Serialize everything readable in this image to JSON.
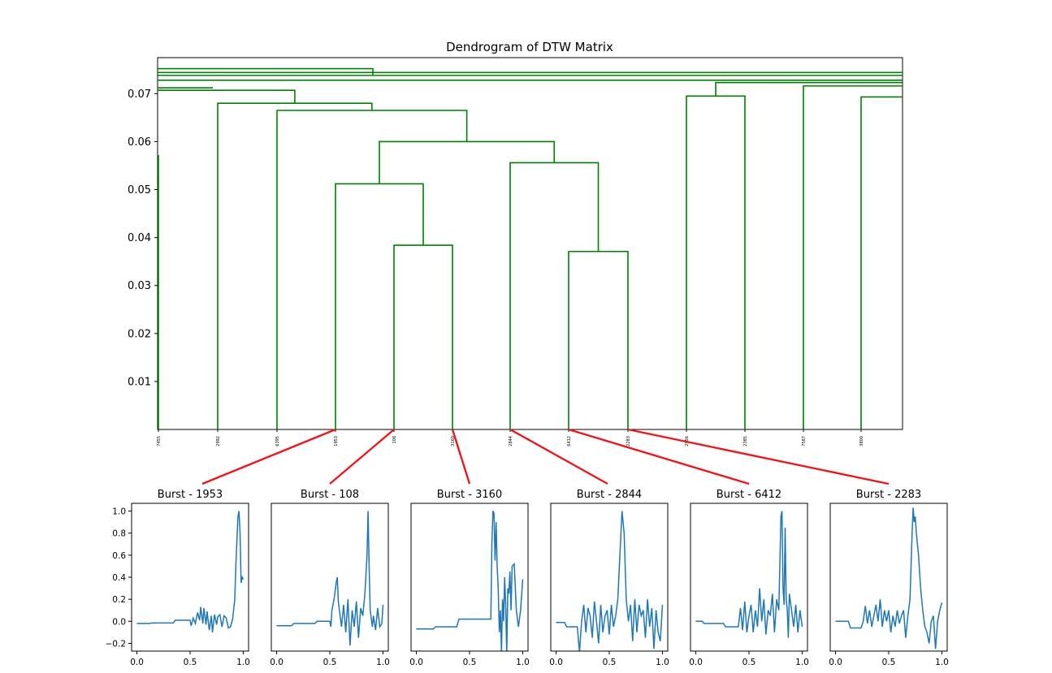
{
  "figure": {
    "colors": {
      "dendrogram": "#008000",
      "connector": "#e8181c",
      "signal": "#1f77b4",
      "axis": "#000000"
    }
  },
  "chart_data": [
    {
      "type": "dendrogram",
      "title": "Dendrogram of DTW Matrix",
      "xlabel": "",
      "ylabel": "",
      "ylim": [
        0,
        0.0775
      ],
      "yticks": [
        0.01,
        0.02,
        0.03,
        0.04,
        0.05,
        0.06,
        0.07
      ],
      "ytick_labels": [
        "0.01",
        "0.02",
        "0.03",
        "0.04",
        "0.05",
        "0.06",
        "0.07"
      ],
      "leaves": [
        "7455",
        "2992",
        "6395",
        "1953",
        "108",
        "3160",
        "2844",
        "6412",
        "2283",
        "2956",
        "2385",
        "7587",
        "3800"
      ],
      "merges": [
        {
          "left": "108",
          "right": "3160",
          "height": 0.0384
        },
        {
          "left": "1953",
          "right": "108+3160",
          "height": 0.0512
        },
        {
          "left": "6412",
          "right": "2283",
          "height": 0.0371
        },
        {
          "left": "2844",
          "right": "6412+2283",
          "height": 0.0556
        },
        {
          "left": "1953+108+3160",
          "right": "2844+6412+2283",
          "height": 0.06
        },
        {
          "left": "6395",
          "right": "1953..2283",
          "height": 0.0665
        },
        {
          "left": "2992",
          "right": "6395..2283",
          "height": 0.068
        },
        {
          "left": "2956",
          "right": "2385",
          "height": 0.0695
        },
        {
          "left": "2956+2385",
          "right": "(off-axis)",
          "height": 0.0723
        },
        {
          "left": "7587",
          "right": "(off-axis)",
          "height": 0.0716
        },
        {
          "left": "3800",
          "right": "(off-axis)",
          "height": 0.0693
        }
      ],
      "connectors": [
        {
          "leaf": "1953",
          "panel": "Burst - 1953"
        },
        {
          "leaf": "108",
          "panel": "Burst - 108"
        },
        {
          "leaf": "3160",
          "panel": "Burst - 3160"
        },
        {
          "leaf": "2844",
          "panel": "Burst - 2844"
        },
        {
          "leaf": "6412",
          "panel": "Burst - 6412"
        },
        {
          "leaf": "2283",
          "panel": "Burst - 2283"
        }
      ]
    },
    {
      "type": "line",
      "title": "Burst - 1953",
      "xlim": [
        -0.05,
        1.05
      ],
      "ylim": [
        -0.27,
        1.07
      ],
      "xticks": [
        "0.0",
        "0.5",
        "1.0"
      ],
      "yticks": [
        "−0.2",
        "0.0",
        "0.2",
        "0.4",
        "0.6",
        "0.8",
        "1.0"
      ],
      "x": [
        0.0,
        0.12,
        0.14,
        0.34,
        0.36,
        0.5,
        0.51,
        0.53,
        0.55,
        0.57,
        0.59,
        0.6,
        0.62,
        0.63,
        0.65,
        0.66,
        0.68,
        0.7,
        0.71,
        0.73,
        0.75,
        0.76,
        0.78,
        0.8,
        0.82,
        0.84,
        0.86,
        0.88,
        0.9,
        0.92,
        0.93,
        0.95,
        0.96,
        0.97,
        0.98,
        0.99,
        1.0
      ],
      "y": [
        -0.02,
        -0.02,
        -0.015,
        -0.015,
        0.01,
        0.01,
        -0.04,
        0.03,
        -0.02,
        0.08,
        0.01,
        0.13,
        -0.02,
        0.12,
        -0.03,
        0.09,
        -0.08,
        0.05,
        -0.1,
        0.06,
        -0.03,
        0.04,
        0.06,
        -0.05,
        0.05,
        0.03,
        -0.06,
        -0.05,
        0.02,
        0.2,
        0.5,
        0.95,
        1.0,
        0.8,
        0.35,
        0.4,
        0.38
      ]
    },
    {
      "type": "line",
      "title": "Burst - 108",
      "xlim": [
        -0.05,
        1.05
      ],
      "ylim": [
        -0.27,
        1.07
      ],
      "xticks": [
        "0.0",
        "0.5",
        "1.0"
      ],
      "yticks": [],
      "x": [
        0.0,
        0.14,
        0.16,
        0.36,
        0.38,
        0.5,
        0.51,
        0.52,
        0.54,
        0.56,
        0.57,
        0.58,
        0.59,
        0.61,
        0.63,
        0.65,
        0.67,
        0.69,
        0.71,
        0.73,
        0.75,
        0.77,
        0.79,
        0.81,
        0.83,
        0.85,
        0.86,
        0.87,
        0.88,
        0.9,
        0.91,
        0.93,
        0.95,
        0.97,
        0.99,
        1.0
      ],
      "y": [
        -0.04,
        -0.04,
        -0.02,
        -0.02,
        0.0,
        0.0,
        -0.05,
        0.1,
        0.2,
        0.35,
        0.4,
        0.18,
        0.1,
        -0.05,
        0.15,
        -0.1,
        0.2,
        -0.22,
        0.1,
        -0.05,
        0.18,
        -0.15,
        0.12,
        0.05,
        0.25,
        0.6,
        1.0,
        0.5,
        0.1,
        -0.05,
        0.05,
        -0.08,
        0.12,
        -0.05,
        -0.02,
        0.15
      ]
    },
    {
      "type": "line",
      "title": "Burst - 3160",
      "xlim": [
        -0.05,
        1.05
      ],
      "ylim": [
        -0.27,
        1.07
      ],
      "xticks": [
        "0.0",
        "0.5",
        "1.0"
      ],
      "yticks": [],
      "x": [
        0.0,
        0.16,
        0.18,
        0.38,
        0.4,
        0.7,
        0.71,
        0.72,
        0.73,
        0.74,
        0.75,
        0.76,
        0.77,
        0.78,
        0.79,
        0.8,
        0.81,
        0.82,
        0.83,
        0.84,
        0.85,
        0.86,
        0.87,
        0.88,
        0.89,
        0.9,
        0.92,
        0.94,
        0.96,
        0.98,
        1.0
      ],
      "y": [
        -0.07,
        -0.07,
        -0.05,
        -0.05,
        0.02,
        0.02,
        0.7,
        1.0,
        0.98,
        0.55,
        0.9,
        0.5,
        0.3,
        -0.1,
        0.1,
        -0.28,
        0.2,
        0.0,
        0.4,
        0.15,
        -0.3,
        0.3,
        0.25,
        0.45,
        0.1,
        0.5,
        0.52,
        0.1,
        -0.05,
        0.1,
        0.38
      ]
    },
    {
      "type": "line",
      "title": "Burst - 2844",
      "xlim": [
        -0.05,
        1.05
      ],
      "ylim": [
        -0.27,
        1.07
      ],
      "xticks": [
        "0.0",
        "0.5",
        "1.0"
      ],
      "yticks": [],
      "x": [
        0.0,
        0.08,
        0.1,
        0.2,
        0.22,
        0.24,
        0.26,
        0.28,
        0.3,
        0.32,
        0.34,
        0.36,
        0.38,
        0.4,
        0.42,
        0.44,
        0.46,
        0.48,
        0.5,
        0.52,
        0.54,
        0.56,
        0.58,
        0.6,
        0.62,
        0.64,
        0.66,
        0.68,
        0.7,
        0.72,
        0.74,
        0.76,
        0.78,
        0.8,
        0.82,
        0.84,
        0.86,
        0.88,
        0.9,
        0.92,
        0.94,
        0.96,
        0.98,
        1.0
      ],
      "y": [
        -0.01,
        -0.01,
        -0.05,
        -0.05,
        -0.28,
        0.0,
        0.15,
        -0.1,
        0.12,
        0.05,
        -0.15,
        0.18,
        0.0,
        -0.2,
        0.15,
        -0.1,
        0.05,
        0.1,
        -0.12,
        0.15,
        -0.05,
        0.05,
        0.2,
        0.6,
        1.0,
        0.8,
        0.2,
        0.0,
        0.15,
        -0.18,
        0.2,
        -0.1,
        0.15,
        0.05,
        0.1,
        -0.15,
        0.2,
        -0.05,
        0.12,
        -0.25,
        0.1,
        -0.1,
        -0.18,
        0.15
      ]
    },
    {
      "type": "line",
      "title": "Burst - 6412",
      "xlim": [
        -0.05,
        1.05
      ],
      "ylim": [
        -0.27,
        1.07
      ],
      "xticks": [
        "0.0",
        "0.5",
        "1.0"
      ],
      "yticks": [],
      "x": [
        0.0,
        0.06,
        0.08,
        0.26,
        0.28,
        0.4,
        0.42,
        0.44,
        0.46,
        0.48,
        0.5,
        0.52,
        0.54,
        0.56,
        0.58,
        0.6,
        0.62,
        0.64,
        0.66,
        0.68,
        0.7,
        0.72,
        0.74,
        0.76,
        0.78,
        0.8,
        0.81,
        0.82,
        0.83,
        0.84,
        0.85,
        0.86,
        0.87,
        0.88,
        0.9,
        0.92,
        0.94,
        0.96,
        0.98,
        1.0
      ],
      "y": [
        0.0,
        0.0,
        -0.02,
        -0.02,
        -0.05,
        -0.05,
        0.12,
        -0.08,
        0.18,
        -0.1,
        0.05,
        0.15,
        -0.1,
        0.1,
        -0.05,
        0.3,
        0.0,
        0.2,
        -0.12,
        0.1,
        0.05,
        0.25,
        -0.1,
        0.2,
        0.1,
        0.95,
        1.0,
        0.3,
        0.15,
        0.85,
        0.2,
        0.1,
        -0.15,
        0.25,
        0.1,
        -0.05,
        0.15,
        -0.1,
        0.1,
        -0.05
      ]
    },
    {
      "type": "line",
      "title": "Burst - 2283",
      "xlim": [
        -0.05,
        1.05
      ],
      "ylim": [
        -0.27,
        1.07
      ],
      "xticks": [
        "0.0",
        "0.5",
        "1.0"
      ],
      "yticks": [],
      "x": [
        0.0,
        0.12,
        0.14,
        0.24,
        0.26,
        0.28,
        0.3,
        0.32,
        0.34,
        0.36,
        0.38,
        0.4,
        0.42,
        0.44,
        0.46,
        0.48,
        0.5,
        0.52,
        0.54,
        0.56,
        0.58,
        0.6,
        0.62,
        0.64,
        0.66,
        0.68,
        0.7,
        0.72,
        0.73,
        0.74,
        0.75,
        0.76,
        0.78,
        0.8,
        0.82,
        0.84,
        0.86,
        0.88,
        0.9,
        0.92,
        0.94,
        0.96,
        0.98,
        1.0
      ],
      "y": [
        0.0,
        0.0,
        -0.06,
        -0.06,
        0.0,
        0.14,
        -0.02,
        0.1,
        -0.05,
        0.05,
        0.15,
        0.0,
        0.2,
        -0.05,
        0.1,
        0.0,
        0.1,
        -0.1,
        0.05,
        -0.05,
        0.1,
        -0.02,
        0.05,
        0.1,
        -0.15,
        0.05,
        0.2,
        0.8,
        1.03,
        0.9,
        0.95,
        0.8,
        0.6,
        0.3,
        0.1,
        -0.05,
        -0.1,
        -0.2,
        0.0,
        0.05,
        -0.25,
        0.0,
        0.1,
        0.17
      ]
    }
  ]
}
